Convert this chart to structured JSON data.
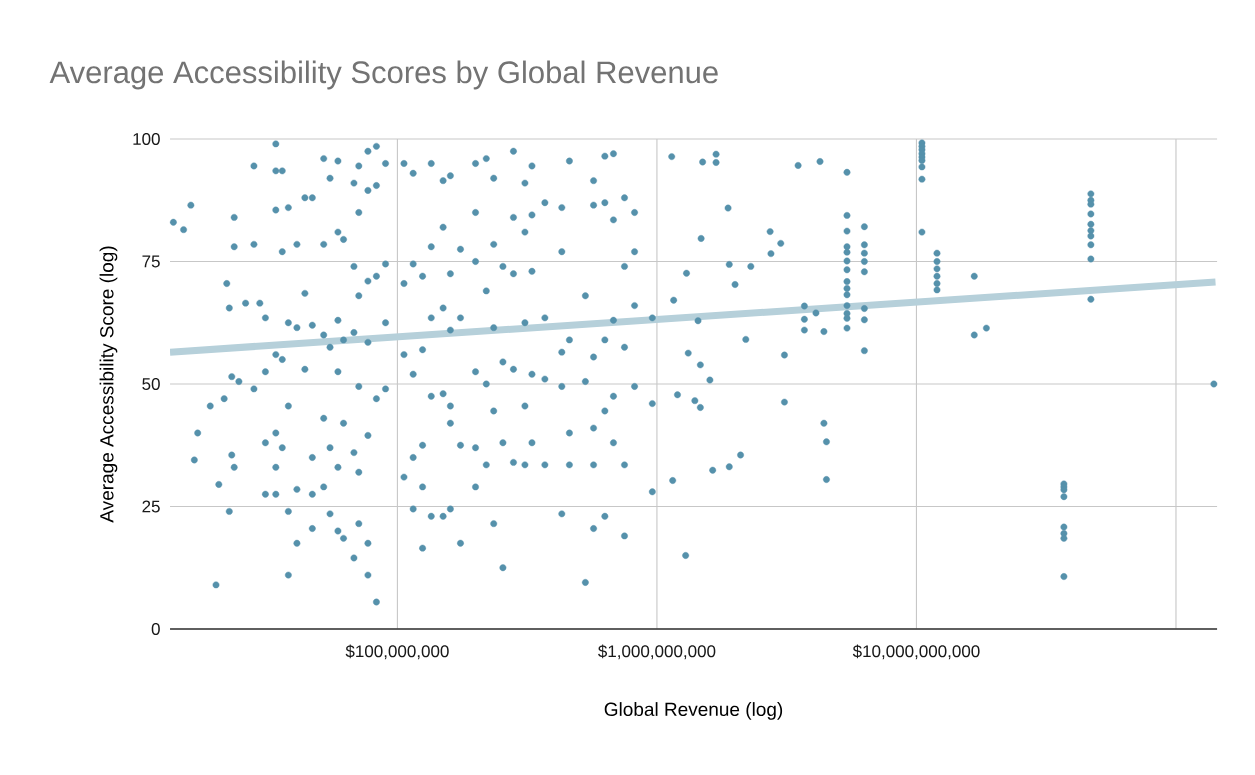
{
  "chart_data": {
    "type": "scatter",
    "title": "Average Accessibility Scores by Global Revenue",
    "xlabel": "Global Revenue (log)",
    "ylabel": "Average Accessibility Score (log)",
    "log": "x",
    "grid": true,
    "xlim": [
      13300000.0,
      144000000000.0
    ],
    "ylim": [
      0,
      100
    ],
    "xticks": [
      {
        "value": 100000000.0,
        "label": "$100,000,000"
      },
      {
        "value": 1000000000.0,
        "label": "$1,000,000,000"
      },
      {
        "value": 10000000000.0,
        "label": "$10,000,000,000"
      },
      {
        "value": 100000000000.0,
        "label": null
      }
    ],
    "yticks": [
      0,
      25,
      50,
      75,
      100
    ],
    "series": [
      {
        "color": "#5591ab",
        "marker": "circle",
        "x": [
          13700000.0,
          15000000.0,
          16000000.0,
          16500000.0,
          17000000.0,
          19000000.0,
          20000000.0,
          20500000.0,
          21500000.0,
          22000000.0,
          22500000.0,
          22500000.0,
          23000000.0,
          23000000.0,
          23500000.0,
          23500000.0,
          23500000.0,
          24500000.0,
          26000000.0,
          28000000.0,
          28000000.0,
          28000000.0,
          29500000.0,
          31000000.0,
          31000000.0,
          31000000.0,
          31000000.0,
          34000000.0,
          34000000.0,
          34000000.0,
          34000000.0,
          34000000.0,
          34000000.0,
          34000000.0,
          36000000.0,
          36000000.0,
          36000000.0,
          36000000.0,
          38000000.0,
          38000000.0,
          38000000.0,
          38000000.0,
          38000000.0,
          41000000.0,
          41000000.0,
          41000000.0,
          41000000.0,
          44000000.0,
          44000000.0,
          44000000.0,
          47000000.0,
          47000000.0,
          47000000.0,
          47000000.0,
          47000000.0,
          52000000.0,
          52000000.0,
          52000000.0,
          52000000.0,
          52000000.0,
          55000000.0,
          55000000.0,
          55000000.0,
          55000000.0,
          59000000.0,
          59000000.0,
          59000000.0,
          59000000.0,
          59000000.0,
          59000000.0,
          62000000.0,
          62000000.0,
          62000000.0,
          62000000.0,
          68000000.0,
          68000000.0,
          68000000.0,
          68000000.0,
          68000000.0,
          71000000.0,
          71000000.0,
          71000000.0,
          71000000.0,
          71000000.0,
          71000000.0,
          77000000.0,
          77000000.0,
          77000000.0,
          77000000.0,
          77000000.0,
          77000000.0,
          77000000.0,
          83000000.0,
          83000000.0,
          83000000.0,
          83000000.0,
          83000000.0,
          90000000.0,
          90000000.0,
          90000000.0,
          90000000.0,
          106000000.0,
          106000000.0,
          106000000.0,
          106000000.0,
          115000000.0,
          115000000.0,
          115000000.0,
          115000000.0,
          115000000.0,
          125000000.0,
          125000000.0,
          125000000.0,
          125000000.0,
          125000000.0,
          135000000.0,
          135000000.0,
          135000000.0,
          135000000.0,
          135000000.0,
          150000000.0,
          150000000.0,
          150000000.0,
          150000000.0,
          150000000.0,
          160000000.0,
          160000000.0,
          160000000.0,
          160000000.0,
          160000000.0,
          160000000.0,
          175000000.0,
          175000000.0,
          175000000.0,
          175000000.0,
          200000000.0,
          200000000.0,
          200000000.0,
          200000000.0,
          200000000.0,
          200000000.0,
          220000000.0,
          220000000.0,
          220000000.0,
          220000000.0,
          235000000.0,
          235000000.0,
          235000000.0,
          235000000.0,
          235000000.0,
          255000000.0,
          255000000.0,
          255000000.0,
          255000000.0,
          280000000.0,
          280000000.0,
          280000000.0,
          280000000.0,
          280000000.0,
          310000000.0,
          310000000.0,
          310000000.0,
          310000000.0,
          310000000.0,
          330000000.0,
          330000000.0,
          330000000.0,
          330000000.0,
          330000000.0,
          370000000.0,
          370000000.0,
          370000000.0,
          370000000.0,
          430000000.0,
          430000000.0,
          430000000.0,
          430000000.0,
          430000000.0,
          460000000.0,
          460000000.0,
          460000000.0,
          460000000.0,
          530000000.0,
          530000000.0,
          530000000.0,
          570000000.0,
          570000000.0,
          570000000.0,
          570000000.0,
          570000000.0,
          570000000.0,
          630000000.0,
          630000000.0,
          630000000.0,
          630000000.0,
          630000000.0,
          680000000.0,
          680000000.0,
          680000000.0,
          680000000.0,
          680000000.0,
          750000000.0,
          750000000.0,
          750000000.0,
          750000000.0,
          750000000.0,
          820000000.0,
          820000000.0,
          820000000.0,
          820000000.0,
          960000000.0,
          960000000.0,
          960000000.0,
          1140000000.0,
          1500000000.0,
          1690000000.0,
          1690000000.0,
          3500000000.0,
          4250000000.0,
          5400000000.0,
          5400000000.0,
          5400000000.0,
          5400000000.0,
          5400000000.0,
          5400000000.0,
          5400000000.0,
          5400000000.0,
          5400000000.0,
          5400000000.0,
          5400000000.0,
          5400000000.0,
          5400000000.0,
          5400000000.0,
          6300000000.0,
          6300000000.0,
          6300000000.0,
          6300000000.0,
          6300000000.0,
          6300000000.0,
          6300000000.0,
          6300000000.0,
          1880000000.0,
          1480000000.0,
          2730000000.0,
          3000000000.0,
          2750000000.0,
          1900000000.0,
          2300000000.0,
          1300000000.0,
          2000000000.0,
          1160000000.0,
          1440000000.0,
          3700000000.0,
          3700000000.0,
          3700000000.0,
          4100000000.0,
          4400000000.0,
          2200000000.0,
          1320000000.0,
          3100000000.0,
          1470000000.0,
          1600000000.0,
          1200000000.0,
          1400000000.0,
          1470000000.0,
          3100000000.0,
          4400000000.0,
          4500000000.0,
          4500000000.0,
          2100000000.0,
          1900000000.0,
          1640000000.0,
          1150000000.0,
          1290000000.0,
          10500000000.0,
          10500000000.0,
          10500000000.0,
          10500000000.0,
          10500000000.0,
          10500000000.0,
          10500000000.0,
          10500000000.0,
          10500000000.0,
          12000000000.0,
          12000000000.0,
          12000000000.0,
          12000000000.0,
          12000000000.0,
          12000000000.0,
          16700000000.0,
          16700000000.0,
          18600000000.0,
          47000000000.0,
          47000000000.0,
          47000000000.0,
          47000000000.0,
          47000000000.0,
          47000000000.0,
          47000000000.0,
          47000000000.0,
          47000000000.0,
          47000000000.0,
          37000000000.0,
          37000000000.0,
          37000000000.0,
          37000000000.0,
          37000000000.0,
          37000000000.0,
          37000000000.0,
          37000000000.0,
          140000000000.0
        ],
        "values": [
          83,
          81.5,
          86.5,
          34.5,
          40,
          45.5,
          9,
          29.5,
          47,
          70.5,
          65.5,
          24,
          51.5,
          35.5,
          84,
          78,
          33,
          50.5,
          66.5,
          94.5,
          49,
          78.5,
          66.5,
          63.5,
          38,
          27.5,
          52.5,
          99,
          93.5,
          85.5,
          56,
          40,
          33,
          27.5,
          93.5,
          77,
          55,
          37,
          86,
          62.5,
          45.5,
          24,
          11,
          78.5,
          61.5,
          28.5,
          17.5,
          88,
          68.5,
          53,
          88,
          62,
          35,
          20.5,
          27.5,
          96,
          78.5,
          60,
          43,
          29,
          92,
          57.5,
          37,
          23.5,
          95.5,
          81,
          63,
          52.5,
          33,
          20,
          79.5,
          59,
          42,
          18.5,
          91,
          74,
          60.5,
          36,
          14.5,
          94.5,
          85,
          68,
          49.5,
          32,
          21.5,
          97.5,
          89.5,
          71,
          58.5,
          39.5,
          17.5,
          11,
          98.5,
          90.5,
          72,
          47,
          5.5,
          95,
          74.5,
          62.5,
          49,
          95,
          70.5,
          56,
          31,
          93,
          74.5,
          52,
          35,
          24.5,
          72,
          57,
          37.5,
          29,
          16.5,
          95,
          78,
          63.5,
          47.5,
          23,
          91.5,
          82,
          65.5,
          48,
          23,
          92.5,
          72.5,
          61,
          45.5,
          24.5,
          42,
          77.5,
          63.5,
          37.5,
          17.5,
          95,
          85,
          75,
          52.5,
          37,
          29,
          96,
          69,
          50,
          33.5,
          92,
          78.5,
          61.5,
          44.5,
          21.5,
          74,
          54.5,
          38,
          12.5,
          97.5,
          84,
          72.5,
          53,
          34,
          91,
          81,
          62.5,
          45.5,
          33.5,
          94.5,
          84.5,
          73,
          52,
          38,
          87,
          63.5,
          51,
          33.5,
          86,
          77,
          56.5,
          49.5,
          23.5,
          95.5,
          59,
          40,
          33.5,
          68,
          50.5,
          9.5,
          91.5,
          86.5,
          55.5,
          41,
          33.5,
          20.5,
          96.5,
          87,
          59,
          44.5,
          23,
          97,
          83.5,
          63,
          47.5,
          38,
          88,
          74,
          57.5,
          33.5,
          19,
          85,
          77,
          66,
          49.5,
          63.5,
          46,
          28,
          96.4,
          95.3,
          96.9,
          95.2,
          94.6,
          95.4,
          93.2,
          84.4,
          81.2,
          78,
          76.9,
          75.1,
          73.3,
          70.9,
          69.5,
          68.2,
          66,
          64.4,
          63.4,
          61.4,
          82.1,
          78.4,
          76.7,
          75,
          72.9,
          65.4,
          63.1,
          56.8,
          85.9,
          79.7,
          81.1,
          78.7,
          76.6,
          74.4,
          74,
          72.6,
          70.3,
          67.1,
          62.9,
          65.9,
          63.2,
          61,
          64.5,
          60.7,
          59.1,
          56.3,
          55.9,
          53.9,
          50.8,
          47.8,
          46.6,
          45.2,
          46.3,
          42,
          38.2,
          30.5,
          35.5,
          33.1,
          32.4,
          30.3,
          15,
          99.2,
          98.5,
          97.8,
          97,
          96.3,
          95.6,
          94.3,
          91.8,
          81,
          76.7,
          75,
          73.5,
          72,
          70.5,
          69.2,
          72,
          60,
          61.4,
          88.8,
          87.5,
          86.7,
          84.7,
          82.6,
          81.3,
          80.2,
          78.4,
          75.5,
          67.3,
          29.6,
          29,
          28.4,
          27,
          20.8,
          19.5,
          18.5,
          10.7,
          50
        ]
      },
      {
        "type": "line",
        "marker": "none",
        "color": "#b6d0da",
        "x": [
          13300000.0,
          142000000000.0
        ],
        "values": [
          56.5,
          70.8
        ]
      }
    ]
  }
}
